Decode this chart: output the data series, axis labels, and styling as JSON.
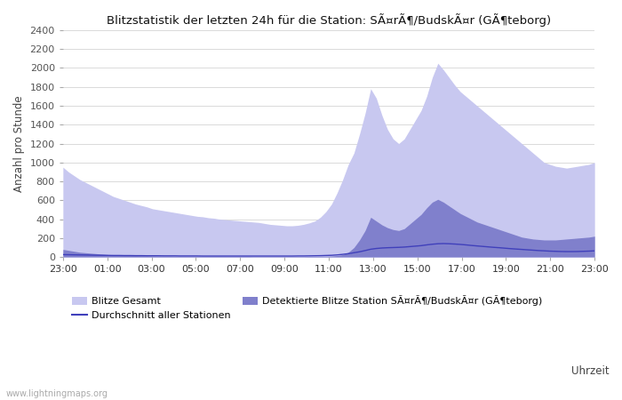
{
  "title": "Blitzstatistik der letzten 24h für die Station: SÃ¤rÃ¶/BudskÃ¤r (GÃ¶teborg)",
  "ylabel": "Anzahl pro Stunde",
  "xlabel": "Uhrzeit",
  "ylim": [
    0,
    2400
  ],
  "yticks": [
    0,
    200,
    400,
    600,
    800,
    1000,
    1200,
    1400,
    1600,
    1800,
    2000,
    2200,
    2400
  ],
  "x_labels": [
    "23:00",
    "01:00",
    "03:00",
    "05:00",
    "07:00",
    "09:00",
    "11:00",
    "13:00",
    "15:00",
    "17:00",
    "19:00",
    "21:00",
    "23:00"
  ],
  "color_gesamt": "#c8c8f0",
  "color_station": "#8080cc",
  "color_avg_line": "#4040bb",
  "bg_color": "#ffffff",
  "watermark": "www.lightningmaps.org",
  "n_points": 96,
  "blitze_gesamt": [
    950,
    900,
    860,
    820,
    790,
    760,
    730,
    700,
    670,
    640,
    620,
    600,
    580,
    560,
    545,
    530,
    510,
    500,
    490,
    480,
    470,
    460,
    450,
    440,
    430,
    425,
    415,
    410,
    400,
    395,
    390,
    385,
    380,
    375,
    370,
    365,
    355,
    345,
    340,
    335,
    330,
    330,
    335,
    345,
    360,
    380,
    420,
    480,
    560,
    680,
    820,
    980,
    1100,
    1300,
    1520,
    1780,
    1680,
    1500,
    1350,
    1250,
    1200,
    1250,
    1350,
    1450,
    1550,
    1700,
    1900,
    2050,
    1980,
    1900,
    1820,
    1750,
    1700,
    1650,
    1600,
    1550,
    1500,
    1450,
    1400,
    1350,
    1300,
    1250,
    1200,
    1150,
    1100,
    1050,
    1000,
    980,
    960,
    950,
    940,
    950,
    960,
    970,
    980,
    1000
  ],
  "detektierte": [
    80,
    70,
    60,
    50,
    45,
    40,
    35,
    30,
    25,
    22,
    20,
    18,
    16,
    15,
    14,
    13,
    12,
    11,
    10,
    10,
    9,
    9,
    8,
    8,
    8,
    7,
    7,
    7,
    7,
    6,
    6,
    6,
    6,
    6,
    5,
    5,
    5,
    5,
    5,
    5,
    5,
    5,
    5,
    5,
    6,
    6,
    7,
    8,
    10,
    15,
    25,
    50,
    100,
    180,
    280,
    420,
    380,
    340,
    310,
    290,
    280,
    300,
    350,
    400,
    450,
    520,
    580,
    610,
    580,
    540,
    500,
    460,
    430,
    400,
    370,
    350,
    330,
    310,
    290,
    270,
    250,
    230,
    210,
    200,
    190,
    185,
    180,
    180,
    180,
    185,
    190,
    195,
    200,
    205,
    210,
    220
  ],
  "avg_line": [
    25,
    24,
    23,
    22,
    21,
    20,
    19,
    18,
    17,
    16,
    16,
    15,
    15,
    14,
    14,
    13,
    13,
    13,
    12,
    12,
    12,
    11,
    11,
    11,
    11,
    10,
    10,
    10,
    10,
    10,
    10,
    10,
    10,
    10,
    10,
    10,
    10,
    10,
    10,
    10,
    10,
    10,
    11,
    11,
    12,
    13,
    14,
    16,
    18,
    22,
    28,
    35,
    45,
    55,
    68,
    82,
    90,
    95,
    98,
    100,
    102,
    105,
    110,
    115,
    120,
    128,
    135,
    140,
    142,
    140,
    137,
    133,
    128,
    122,
    117,
    112,
    107,
    102,
    98,
    93,
    88,
    84,
    80,
    76,
    72,
    68,
    65,
    62,
    60,
    58,
    57,
    57,
    58,
    60,
    62,
    65
  ]
}
